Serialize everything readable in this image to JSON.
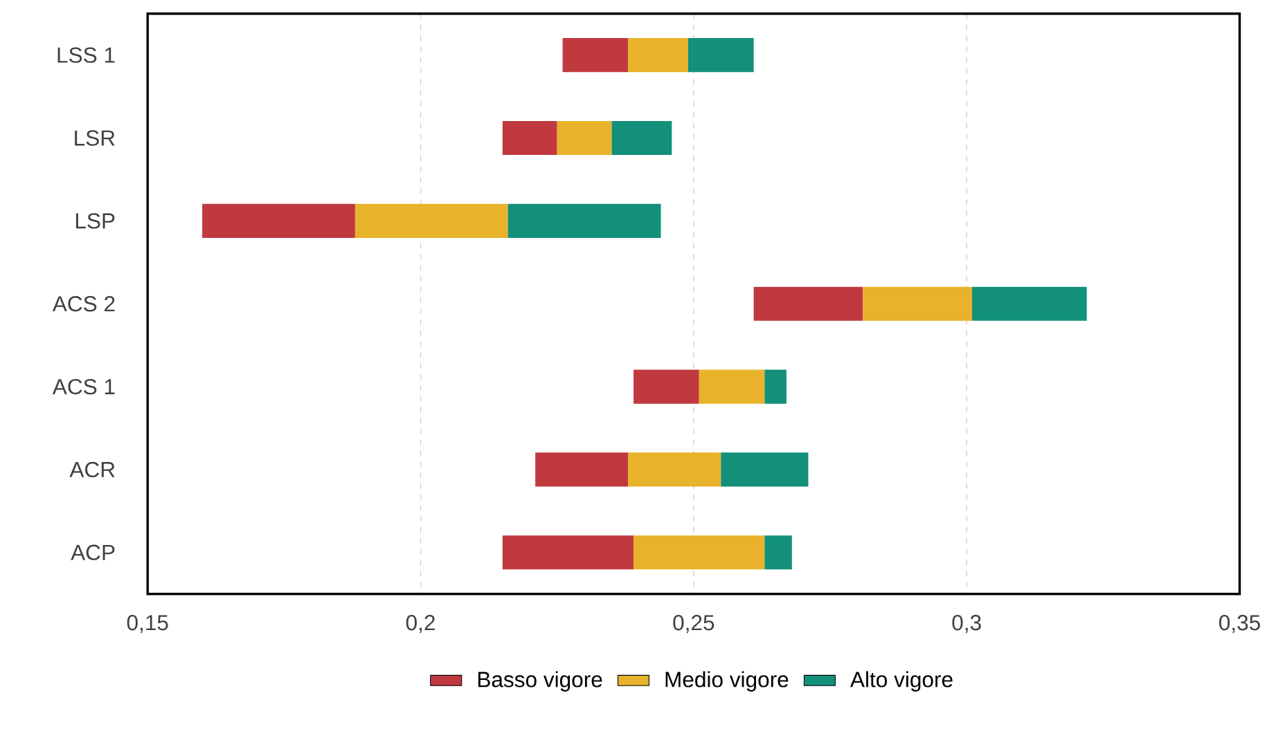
{
  "chart_data": {
    "type": "bar",
    "orientation": "horizontal",
    "categories": [
      "LSS 1",
      "LSR",
      "LSP",
      "ACS 2",
      "ACS 1",
      "ACR",
      "ACP"
    ],
    "series": [
      {
        "name": "Basso vigore",
        "color": "#c0393f",
        "base": [
          0.226,
          0.215,
          0.16,
          0.261,
          0.239,
          0.221,
          0.215
        ],
        "values": [
          0.012,
          0.01,
          0.028,
          0.02,
          0.012,
          0.017,
          0.024
        ]
      },
      {
        "name": "Medio vigore",
        "color": "#e8b32a",
        "base": [
          0.238,
          0.225,
          0.188,
          0.281,
          0.251,
          0.238,
          0.239
        ],
        "values": [
          0.011,
          0.01,
          0.028,
          0.02,
          0.012,
          0.017,
          0.024
        ]
      },
      {
        "name": "Alto vigore",
        "color": "#12907a",
        "base": [
          0.249,
          0.235,
          0.216,
          0.301,
          0.263,
          0.255,
          0.263
        ],
        "values": [
          0.012,
          0.011,
          0.028,
          0.021,
          0.004,
          0.016,
          0.005
        ]
      }
    ],
    "xlim": [
      0.15,
      0.35
    ],
    "xticks": [
      {
        "value": 0.15,
        "label": "0,15"
      },
      {
        "value": 0.2,
        "label": "0,2"
      },
      {
        "value": 0.25,
        "label": "0,25"
      },
      {
        "value": 0.3,
        "label": "0,3"
      },
      {
        "value": 0.35,
        "label": "0,35"
      }
    ],
    "grid": "x",
    "legend": "bottom"
  }
}
